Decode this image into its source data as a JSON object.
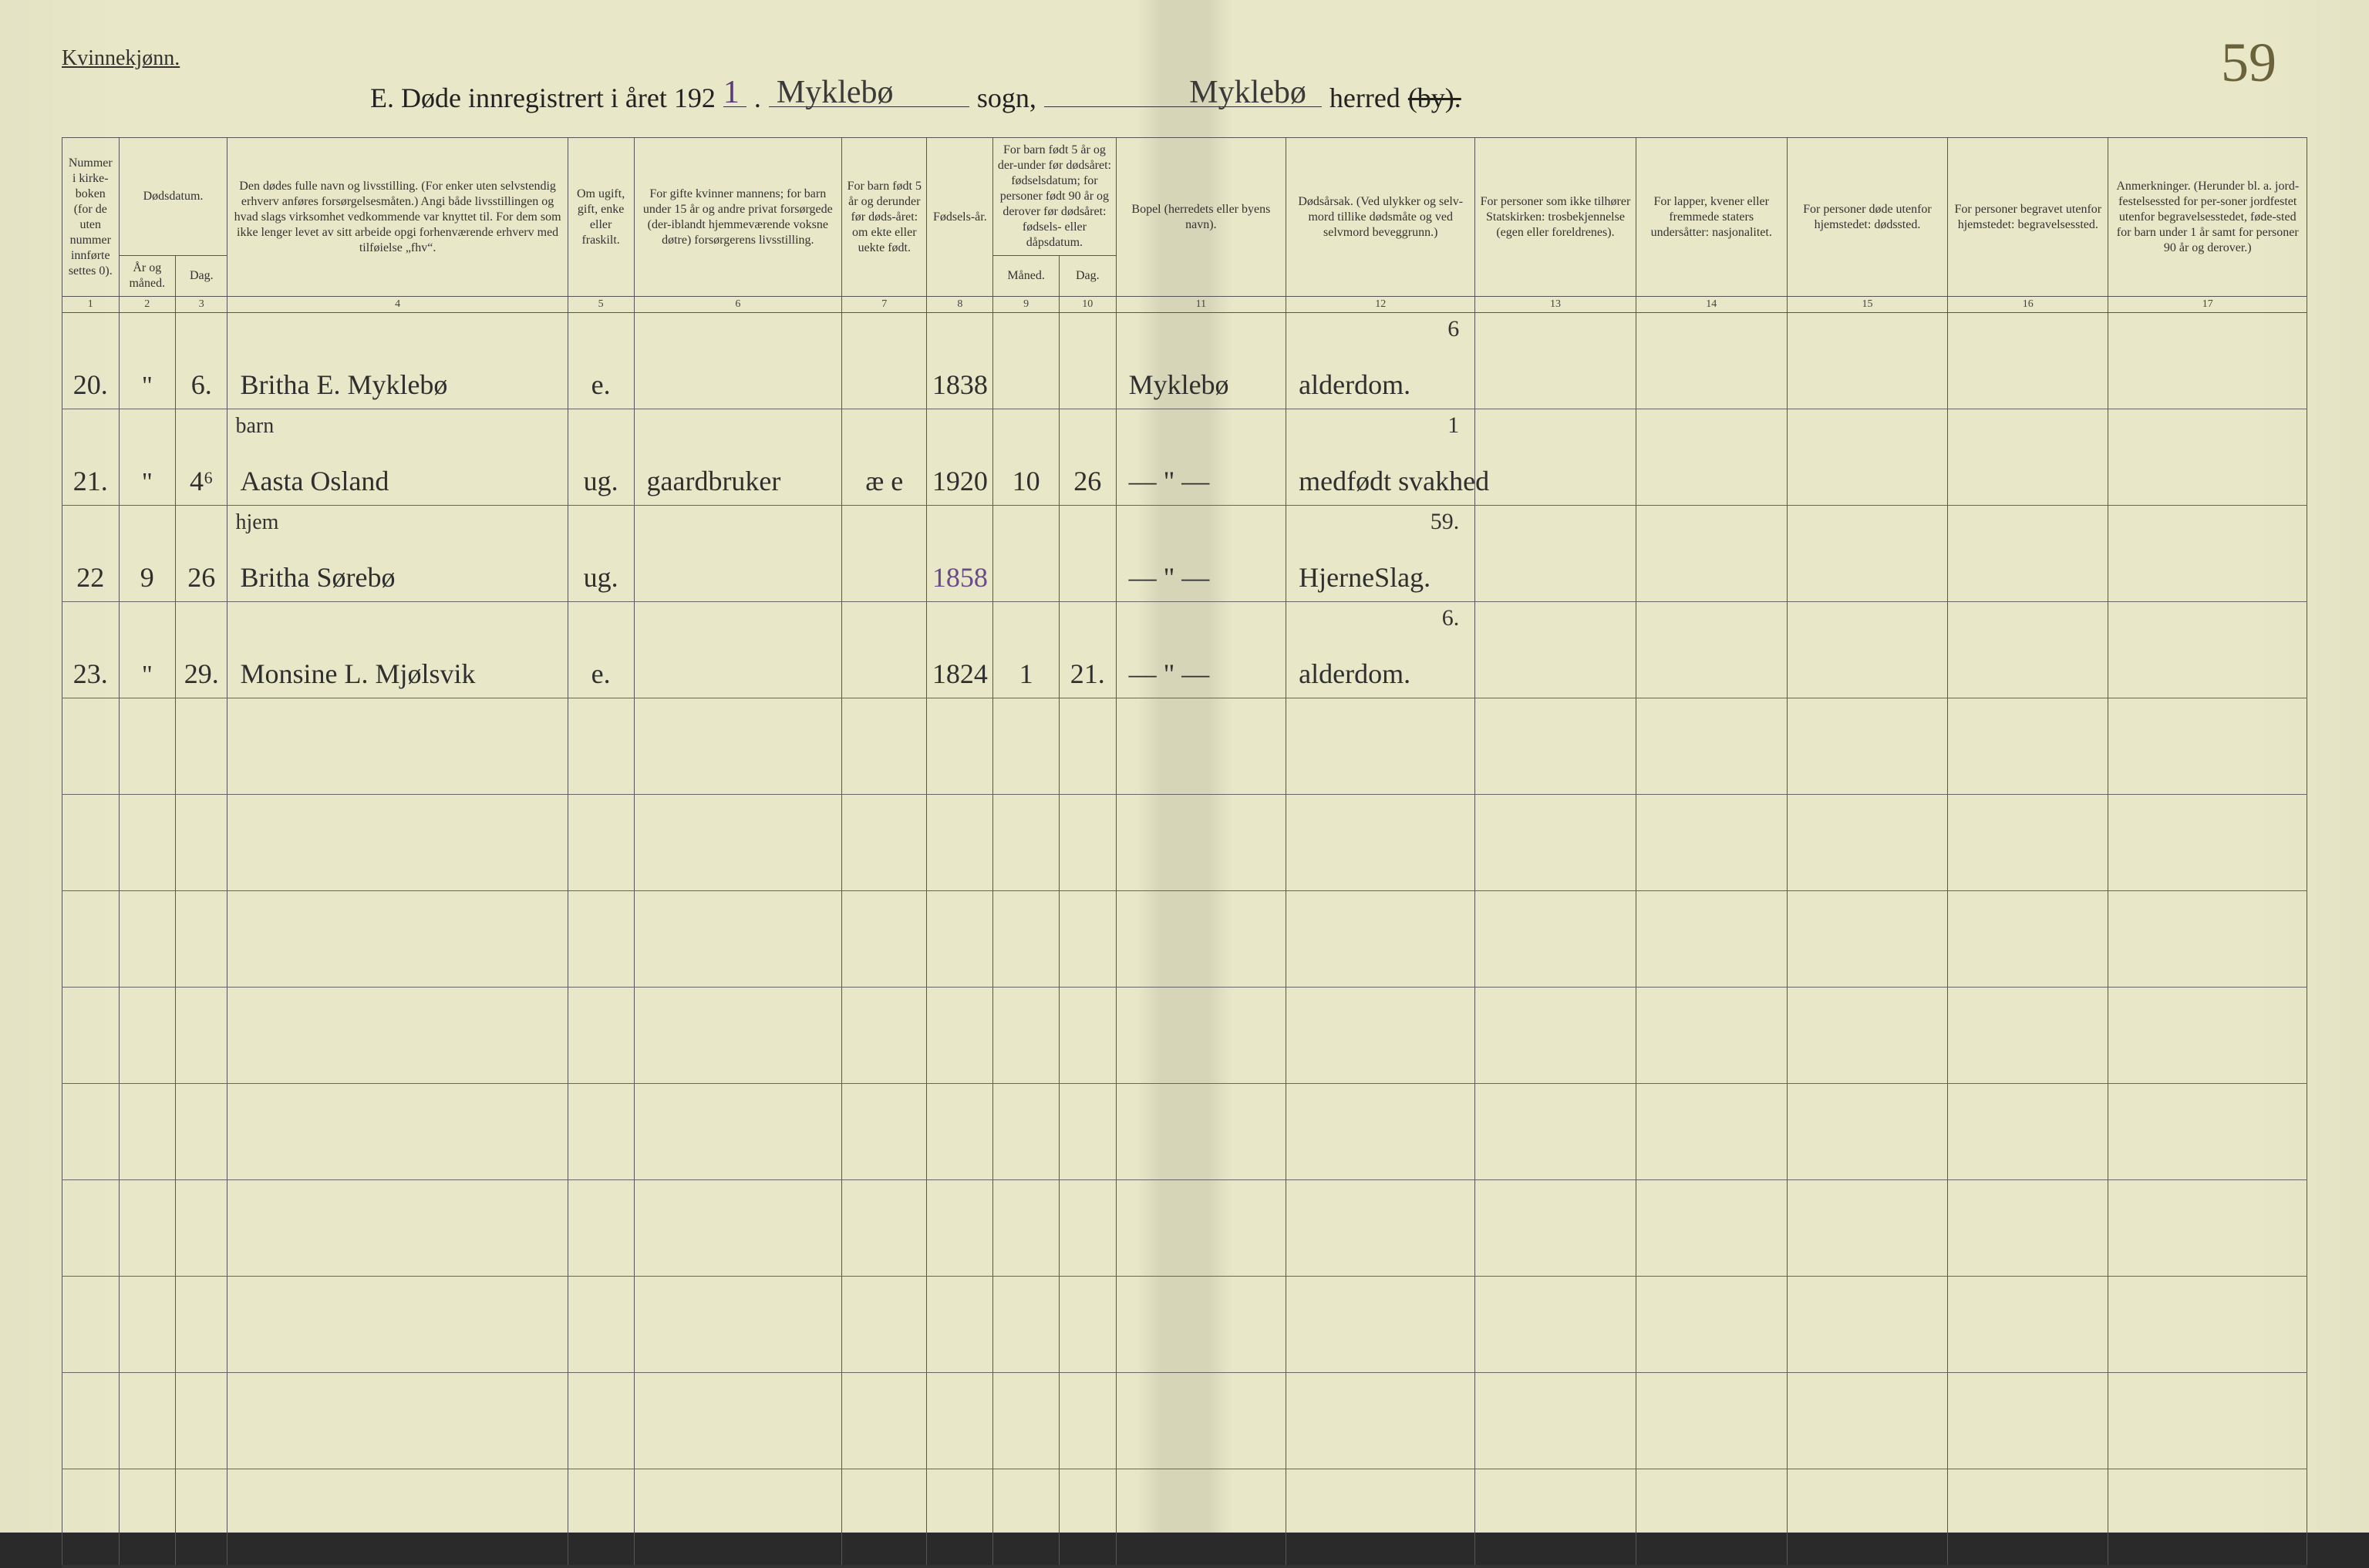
{
  "header": {
    "gender_label": "Kvinnekjønn.",
    "title_prefix": "E.   Døde innregistrert i året 192",
    "year_suffix_hand": "1",
    "title_dot": ".",
    "sogn_hand": "Myklebø",
    "sogn_label": "sogn,",
    "herred_hand": "Myklebø",
    "herred_label": "herred",
    "by_strike": "(by).",
    "page_number": "59"
  },
  "columns": {
    "c1": "Nummer i kirke-boken (for de uten nummer innførte settes 0).",
    "c2_group": "Dødsdatum.",
    "c2": "År og måned.",
    "c3": "Dag.",
    "c4": "Den dødes fulle navn og livsstilling. (For enker uten selvstendig erhverv anføres forsørgelsesmåten.) Angi både livsstillingen og hvad slags virksomhet vedkommende var knyttet til. For dem som ikke lenger levet av sitt arbeide opgi forhenværende erhverv med tilføielse „fhv“.",
    "c5": "Om ugift, gift, enke eller fraskilt.",
    "c6": "For gifte kvinner mannens; for barn under 15 år og andre privat forsørgede (der-iblandt hjemmeværende voksne døtre) forsørgerens livsstilling.",
    "c7": "For barn født 5 år og derunder før døds-året: om ekte eller uekte født.",
    "c8": "Fødsels-år.",
    "c9_group": "For barn født 5 år og der-under før dødsåret: fødselsdatum; for personer født 90 år og derover før dødsåret: fødsels- eller dåpsdatum.",
    "c9": "Måned.",
    "c10": "Dag.",
    "c11": "Bopel (herredets eller byens navn).",
    "c12": "Dødsårsak. (Ved ulykker og selv-mord tillike dødsmåte og ved selvmord beveggrunn.)",
    "c13": "For personer som ikke tilhører Statskirken: trosbekjennelse (egen eller foreldrenes).",
    "c14": "For lapper, kvener eller fremmede staters undersåtter: nasjonalitet.",
    "c15": "For personer døde utenfor hjemstedet: dødssted.",
    "c16": "For personer begravet utenfor hjemstedet: begravelsessted.",
    "c17": "Anmerkninger. (Herunder bl. a. jord-festelsessted for per-soner jordfestet utenfor begravelsesstedet, føde-sted for barn under 1 år samt for personer 90 år og derover.)"
  },
  "colnums": [
    "1",
    "2",
    "3",
    "4",
    "5",
    "6",
    "7",
    "8",
    "9",
    "10",
    "11",
    "12",
    "13",
    "14",
    "15",
    "16",
    "17"
  ],
  "rows": [
    {
      "num": "20.",
      "mon": "\"",
      "dag": "6.",
      "name_sup": "",
      "name": "Britha E. Myklebø",
      "c5": "e.",
      "c6": "",
      "c7": "",
      "c8": "1838",
      "c9": "",
      "c10": "",
      "c11": "Myklebø",
      "c12_sup": "6",
      "c12": "alderdom."
    },
    {
      "num": "21.",
      "mon": "\"",
      "dag": "4⁶",
      "name_sup": "barn",
      "name": "Aasta Osland",
      "c5": "ug.",
      "c6": "gaardbruker",
      "c7": "æ e",
      "c8": "1920",
      "c9": "10",
      "c10": "26",
      "c11": "— \" —",
      "c12_sup": "1",
      "c12": "medfødt svakhed"
    },
    {
      "num": "22",
      "mon": "9",
      "dag": "26",
      "name_sup": "hjem",
      "name": "Britha Sørebø",
      "c5": "ug.",
      "c6": "",
      "c7": "",
      "c8": "1858",
      "c8_purple": true,
      "c9": "",
      "c10": "",
      "c11": "— \" —",
      "c12_sup": "59.",
      "c12": "HjerneSlag."
    },
    {
      "num": "23.",
      "mon": "\"",
      "dag": "29.",
      "name_sup": "",
      "name": "Monsine L. Mjølsvik",
      "c5": "e.",
      "c6": "",
      "c7": "",
      "c8": "1824",
      "c9": "1",
      "c10": "21.",
      "c11": "— \" —",
      "c12_sup": "6.",
      "c12": "alderdom."
    }
  ],
  "blank_rows": 9,
  "styling": {
    "page_bg": "#e8e7c8",
    "ink": "#2f2f2f",
    "purple_ink": "#6a4a8a",
    "rule_color": "#555",
    "header_fontsize": 16,
    "body_hand_fontsize": 36,
    "title_fontsize": 36,
    "pagenum_fontsize": 72
  }
}
